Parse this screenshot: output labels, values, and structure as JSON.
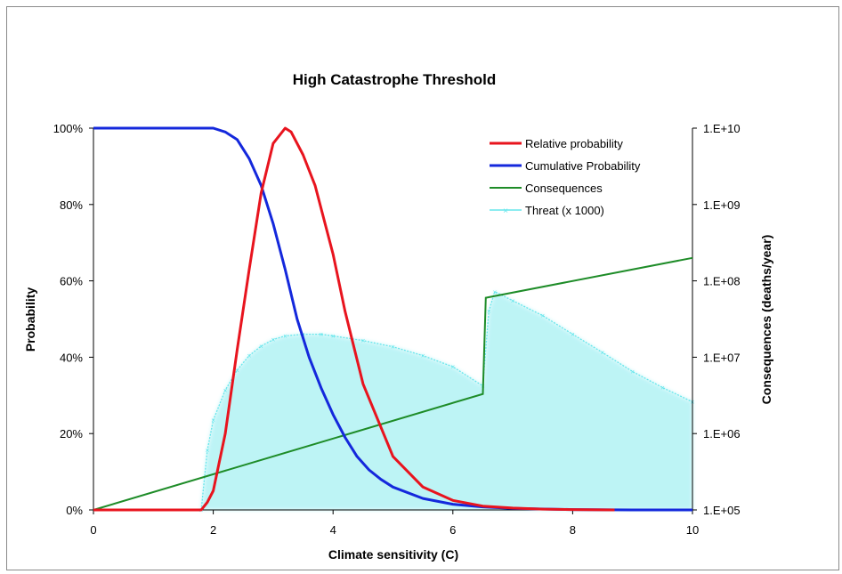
{
  "chart_data": {
    "type": "line",
    "title": "High Catastrophe Threshold",
    "xlabel": "Climate sensitivity (C)",
    "ylabel_left": "Probability",
    "ylabel_right": "Consequences (deaths/year)",
    "xlim": [
      0,
      10
    ],
    "ylim_left": [
      0,
      1
    ],
    "ylim_right": [
      100000,
      10000000000
    ],
    "right_scale": "log",
    "grid": false,
    "legend_position": "top-right",
    "x_ticks": [
      "0",
      "2",
      "4",
      "6",
      "8",
      "10"
    ],
    "x_tick_values": [
      0,
      2,
      4,
      6,
      8,
      10
    ],
    "y_left_ticks": [
      "0%",
      "20%",
      "40%",
      "60%",
      "80%",
      "100%"
    ],
    "y_left_tick_values": [
      0,
      0.2,
      0.4,
      0.6,
      0.8,
      1.0
    ],
    "y_right_ticks": [
      "1.E+05",
      "1.E+06",
      "1.E+07",
      "1.E+08",
      "1.E+09",
      "1.E+10"
    ],
    "y_right_tick_values": [
      100000,
      1000000,
      10000000,
      100000000,
      1000000000,
      10000000000
    ],
    "series": [
      {
        "name": "Relative probability",
        "axis": "left",
        "color": "#e8141e",
        "x": [
          0,
          1.8,
          1.9,
          2.0,
          2.2,
          2.4,
          2.6,
          2.8,
          3.0,
          3.2,
          3.3,
          3.5,
          3.7,
          4.0,
          4.2,
          4.5,
          5.0,
          5.5,
          6.0,
          6.5,
          7.0,
          7.5,
          8.0,
          8.7
        ],
        "y": [
          0,
          0,
          0.02,
          0.05,
          0.2,
          0.42,
          0.63,
          0.83,
          0.96,
          1.0,
          0.99,
          0.93,
          0.85,
          0.67,
          0.52,
          0.33,
          0.14,
          0.06,
          0.025,
          0.01,
          0.005,
          0.002,
          0.001,
          0.0
        ]
      },
      {
        "name": "Cumulative Probability",
        "axis": "left",
        "color": "#1428dc",
        "x": [
          0,
          1.0,
          2.0,
          2.2,
          2.4,
          2.6,
          2.8,
          3.0,
          3.2,
          3.4,
          3.6,
          3.8,
          4.0,
          4.2,
          4.4,
          4.6,
          4.8,
          5.0,
          5.5,
          6.0,
          6.5,
          7.0,
          8.0,
          9.0,
          10.0
        ],
        "y": [
          1.0,
          1.0,
          1.0,
          0.99,
          0.97,
          0.92,
          0.85,
          0.75,
          0.63,
          0.5,
          0.4,
          0.32,
          0.25,
          0.19,
          0.14,
          0.105,
          0.08,
          0.06,
          0.03,
          0.015,
          0.008,
          0.004,
          0.001,
          0.0,
          0.0
        ]
      },
      {
        "name": "Consequences",
        "axis": "right",
        "color": "#1e8c28",
        "x": [
          0,
          6.5,
          6.55,
          10.0
        ],
        "y": [
          100000,
          3300000,
          60000000,
          200000000
        ]
      },
      {
        "name": "Threat (x 1000)",
        "axis": "right",
        "color": "#66e6ec",
        "x": [
          1.8,
          1.9,
          2.0,
          2.2,
          2.4,
          2.6,
          2.8,
          3.0,
          3.2,
          3.5,
          3.8,
          4.0,
          4.5,
          5.0,
          5.5,
          6.0,
          6.5,
          6.6,
          6.7,
          7.0,
          7.5,
          8.0,
          8.5,
          9.0,
          9.5,
          10.0
        ],
        "y": [
          100000,
          600000,
          1500000,
          3700000,
          6800000,
          10500000,
          14000000,
          17000000,
          19000000,
          20000000,
          20000000,
          19000000,
          16500000,
          13700000,
          10500000,
          7500000,
          4200000,
          40000000,
          72000000,
          55000000,
          35000000,
          20000000,
          11500000,
          6500000,
          4000000,
          2600000
        ]
      }
    ]
  }
}
